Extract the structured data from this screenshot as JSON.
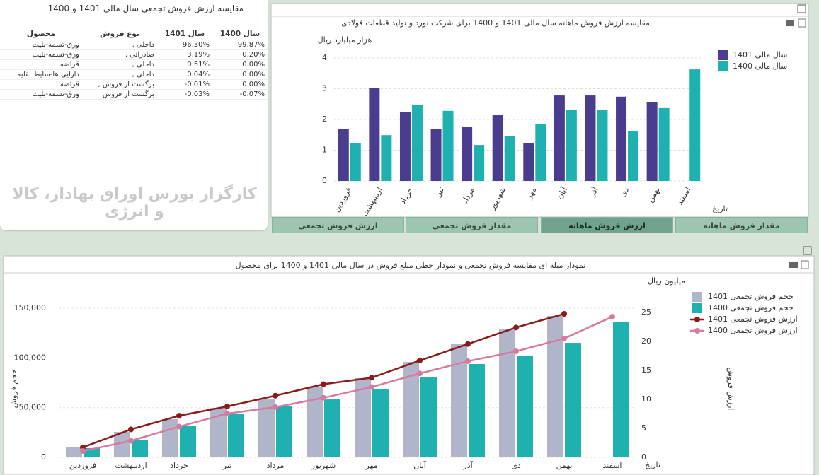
{
  "table_panel": {
    "title": "مقایسه ارزش فروش تجمعی سال مالی 1401 و 1400",
    "table": {
      "columns": [
        "محصول",
        "نوع فروش",
        "سال 1401",
        "سال 1400"
      ],
      "rows": [
        [
          "ورق-تسمه-بلیت",
          "داخلی ,",
          "96.30%",
          "99.87%"
        ],
        [
          "ورق-تسمه-بلیت",
          "صادراتی ,",
          "3.19%",
          "0.20%"
        ],
        [
          "قراضه",
          "داخلی ,",
          "0.51%",
          "0.00%"
        ],
        [
          "دارایی ها-سایط نقلیه",
          "داخلی ,",
          "0.04%",
          "0.00%"
        ],
        [
          "قراضه",
          "برگشت از فروش ,",
          "-0.01%",
          "0.00%"
        ],
        [
          "ورق-تسمه-بلیت",
          "برگشت از فروش",
          "-0.03%",
          "-0.07%"
        ]
      ]
    },
    "watermark": "کارگزار بورس اوراق بهادار، کالا و انرژی"
  },
  "tabs": [
    "ارزش فروش تجمعی",
    "مقدار فروش تجمعی",
    "ارزش فروش ماهانه",
    "مقدار فروش ماهانه"
  ],
  "chart_data": [
    {
      "type": "bar",
      "title": "مقایسه ارزش فروش ماهانه سال مالی 1401 و 1400 برای شرکت نورد و تولید قطعات فولادی",
      "y_label": "هزار میلیارد ریال",
      "x_label": "تاریخ",
      "categories": [
        "فروردین",
        "اردیبهشت",
        "خرداد",
        "تیر",
        "مرداد",
        "شهریور",
        "مهر",
        "آبان",
        "آذر",
        "دی",
        "بهمن",
        "اسفند"
      ],
      "series": [
        {
          "name": "سال مالی 1401",
          "color": "#4a3d8f",
          "values": [
            1.7,
            3.03,
            2.25,
            1.7,
            1.75,
            2.14,
            1.22,
            2.78,
            2.78,
            2.74,
            2.57,
            null
          ]
        },
        {
          "name": "سال مالی 1400",
          "color": "#1fb0b0",
          "values": [
            1.22,
            1.49,
            2.48,
            2.28,
            1.17,
            1.45,
            1.86,
            2.3,
            2.32,
            1.61,
            2.37,
            3.63
          ]
        }
      ],
      "ylim": [
        0,
        4.4
      ],
      "yticks": [
        0,
        1,
        2,
        3,
        4
      ],
      "grid": true,
      "legend": "right"
    },
    {
      "type": "combo",
      "title": "نمودار میله ای مقایسه فروش تجمعی و نمودار خطی مبلغ فروش در سال مالی 1401 و 1400 برای محصول",
      "y_label": "حجم فروش",
      "y2_label": "ارزش فروش",
      "y2_unit": "میلیون ریال",
      "x_label": "تاریخ",
      "categories": [
        "فروردین",
        "اردیبهشت",
        "خرداد",
        "تیر",
        "مرداد",
        "شهریور",
        "مهر",
        "آبان",
        "آذر",
        "دی",
        "بهمن",
        "اسفند"
      ],
      "series": [
        {
          "name": "حجم فروش تجمعی 1401",
          "kind": "bar",
          "color": "#b1b5c9",
          "values": [
            10000,
            25600,
            38400,
            49800,
            58300,
            71100,
            79700,
            96000,
            113800,
            128700,
            142300,
            null
          ]
        },
        {
          "name": "حجم فروش تجمعی 1400",
          "kind": "bar",
          "color": "#1fb0b0",
          "values": [
            9250,
            17800,
            32000,
            44100,
            51200,
            58300,
            68300,
            81100,
            93900,
            101700,
            115200,
            136600
          ]
        },
        {
          "name": "ارزش فروش تجمعی 1401",
          "kind": "line",
          "axis": "y2",
          "color": "#8b1a1a",
          "values": [
            1.73,
            4.83,
            7.18,
            8.79,
            10.64,
            12.62,
            13.74,
            16.7,
            19.55,
            22.4,
            24.75,
            null
          ]
        },
        {
          "name": "ارزش فروش تجمعی 1400",
          "kind": "line",
          "axis": "y2",
          "color": "#d77aa0",
          "values": [
            1.1,
            2.85,
            5.3,
            7.55,
            8.66,
            10.27,
            12.13,
            14.48,
            16.58,
            18.3,
            20.5,
            24.26
          ]
        }
      ],
      "ylim": [
        0,
        175000
      ],
      "yticks": [
        0,
        {
          "value": 50000,
          "label": "50,000"
        },
        {
          "value": 100000,
          "label": "100,000"
        },
        {
          "value": 150000,
          "label": "150,000"
        }
      ],
      "y2lim": [
        0,
        30
      ],
      "y2ticks": [
        0,
        5,
        10,
        15,
        20,
        25
      ],
      "grid": true,
      "legend": "right"
    }
  ]
}
